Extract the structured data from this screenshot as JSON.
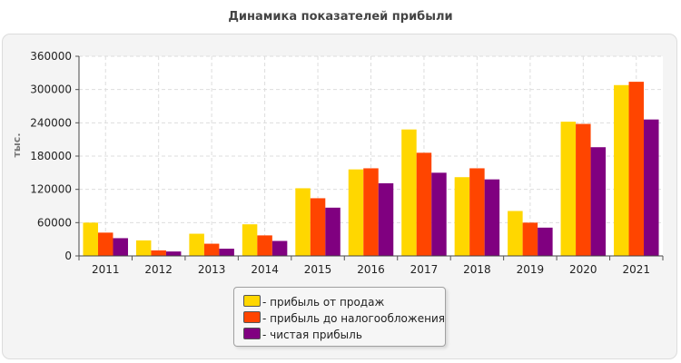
{
  "title": "Динамика показателей прибыли",
  "chart_data": {
    "type": "bar",
    "title": "Динамика показателей прибыли",
    "xlabel": "",
    "ylabel": "тыс.",
    "ylim": [
      0,
      360000
    ],
    "yticks": [
      "0",
      "60000",
      "120000",
      "180000",
      "240000",
      "300000",
      "360000"
    ],
    "yticks_values": [
      0,
      60000,
      120000,
      180000,
      240000,
      300000,
      360000
    ],
    "categories": [
      "2011",
      "2012",
      "2013",
      "2014",
      "2015",
      "2016",
      "2017",
      "2018",
      "2019",
      "2020",
      "2021"
    ],
    "grid": true,
    "legend_position": "bottom",
    "series": [
      {
        "name": "прибыль от продаж",
        "legend_label": "- прибыль от продаж",
        "color": "#ffd700",
        "values": [
          60000,
          28000,
          40000,
          57000,
          122000,
          156000,
          228000,
          142000,
          81000,
          242000,
          308000
        ]
      },
      {
        "name": "прибыль до налогообложения",
        "legend_label": "- прибыль до налогообложения",
        "color": "#ff4500",
        "values": [
          42000,
          10000,
          22000,
          37000,
          104000,
          158000,
          186000,
          158000,
          60000,
          238000,
          314000
        ]
      },
      {
        "name": "чистая прибыль",
        "legend_label": "- чистая прибыль",
        "color": "#800080",
        "values": [
          32000,
          8000,
          13000,
          27000,
          87000,
          131000,
          150000,
          138000,
          51000,
          196000,
          246000
        ]
      }
    ]
  }
}
